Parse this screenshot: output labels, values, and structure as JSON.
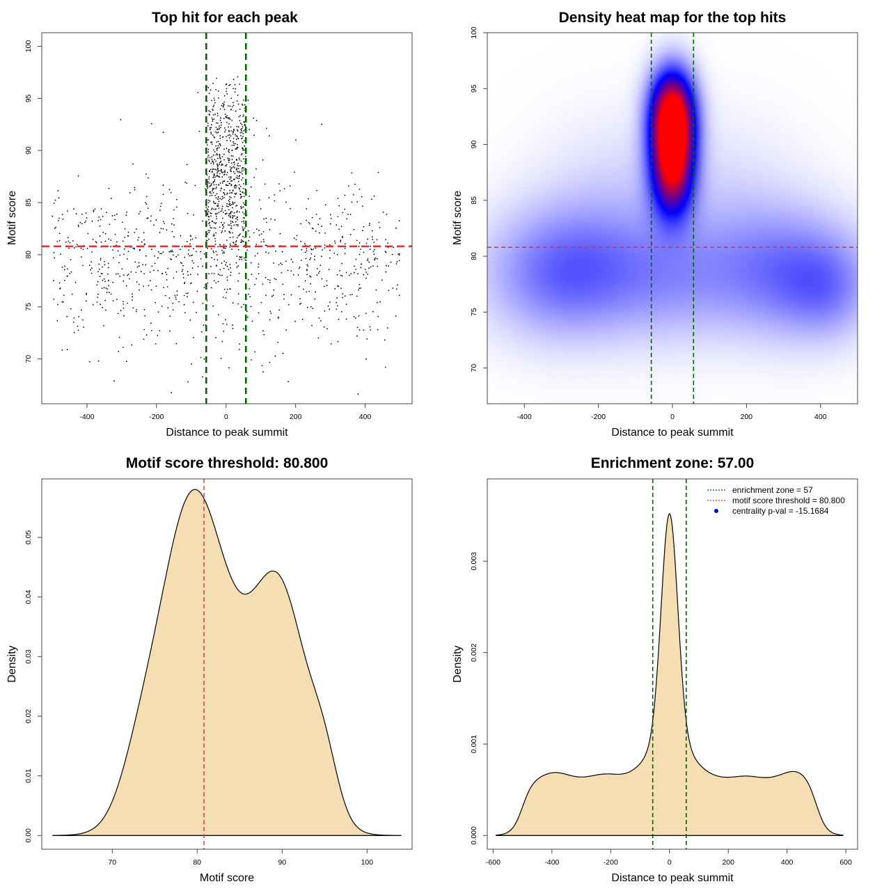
{
  "colors": {
    "threshold_line": "#e03030",
    "zone_line": "#006400",
    "density_fill": "#f5deb3",
    "heat_low": "#ffffff",
    "heat_mid": "#0000ff",
    "heat_high": "#ff0000",
    "legend_dot": "#0000cc"
  },
  "chart_data": [
    {
      "id": "scatter",
      "type": "scatter",
      "title": "Top hit for each peak",
      "xlabel": "Distance to peak summit",
      "ylabel": "Motif score",
      "xlim": [
        -530,
        535
      ],
      "ylim": [
        65.7,
        101.3
      ],
      "xticks": [
        -400,
        -200,
        0,
        200,
        400
      ],
      "yticks": [
        70,
        75,
        80,
        85,
        90,
        95,
        100
      ],
      "vlines": [
        -57,
        57
      ],
      "hline": 80.8,
      "point_count": 1600,
      "background_points": {
        "x_range": [
          -500,
          500
        ],
        "y_mean": 79.5,
        "y_sd": 4.2
      },
      "central_points": {
        "x_range": [
          -57,
          57
        ],
        "y_mean": 88.0,
        "y_sd": 4.5
      }
    },
    {
      "id": "heatmap",
      "type": "heatmap",
      "title": "Density heat map for the top hits",
      "xlabel": "Distance to peak summit",
      "ylabel": "Motif score",
      "xlim": [
        -500,
        500
      ],
      "ylim": [
        66.8,
        100
      ],
      "xticks": [
        -400,
        -200,
        0,
        200,
        400
      ],
      "yticks": [
        70,
        75,
        80,
        85,
        90,
        95,
        100
      ],
      "vlines": [
        -57,
        57
      ],
      "hline": 80.8,
      "hotspots": [
        {
          "x": 0,
          "y": 90.5,
          "sx": 40,
          "sy": 3.2,
          "w": 1.0
        },
        {
          "x": 0,
          "y": 93.5,
          "sx": 42,
          "sy": 2.5,
          "w": 0.45
        },
        {
          "x": 0,
          "y": 86.5,
          "sx": 38,
          "sy": 2.5,
          "w": 0.35
        },
        {
          "x": -280,
          "y": 78.5,
          "sx": 150,
          "sy": 4.0,
          "w": 0.28
        },
        {
          "x": 300,
          "y": 78.5,
          "sx": 150,
          "sy": 4.0,
          "w": 0.24
        },
        {
          "x": 420,
          "y": 77.0,
          "sx": 80,
          "sy": 3.0,
          "w": 0.12
        },
        {
          "x": 0,
          "y": 78.0,
          "sx": 120,
          "sy": 4.0,
          "w": 0.12
        },
        {
          "x": -150,
          "y": 85.5,
          "sx": 150,
          "sy": 5.0,
          "w": 0.06
        },
        {
          "x": 150,
          "y": 85.5,
          "sx": 150,
          "sy": 5.0,
          "w": 0.05
        }
      ]
    },
    {
      "id": "score_density",
      "type": "area",
      "title": "Motif score threshold: 80.800",
      "xlabel": "Motif score",
      "ylabel": "Density",
      "xlim": [
        61.7,
        105.3
      ],
      "ylim": [
        -0.0023,
        0.0598
      ],
      "xticks": [
        70,
        80,
        90,
        100
      ],
      "yticks": [
        0.0,
        0.01,
        0.02,
        0.03,
        0.04,
        0.05
      ],
      "ytick_labels": [
        "0.00",
        "0.01",
        "0.02",
        "0.03",
        "0.04",
        "0.05"
      ],
      "x_range": [
        63,
        104
      ],
      "vline": 80.8,
      "components": [
        {
          "mu": 79.3,
          "sigma": 4.0,
          "w": 0.52
        },
        {
          "mu": 89.8,
          "sigma": 3.3,
          "w": 0.3
        },
        {
          "mu": 95.0,
          "sigma": 1.6,
          "w": 0.03
        },
        {
          "mu": 73.0,
          "sigma": 2.2,
          "w": 0.03
        },
        {
          "mu": 84.5,
          "sigma": 5.0,
          "w": 0.12
        }
      ]
    },
    {
      "id": "distance_density",
      "type": "area",
      "title": "Enrichment zone: 57.00",
      "xlabel": "Distance to peak summit",
      "ylabel": "Density",
      "xlim": [
        -620,
        640
      ],
      "ylim": [
        -0.00015,
        0.0039
      ],
      "xticks": [
        -600,
        -400,
        -200,
        0,
        200,
        400,
        600
      ],
      "yticks": [
        0.0,
        0.001,
        0.002,
        0.003
      ],
      "ytick_labels": [
        "0.000",
        "0.001",
        "0.002",
        "0.003"
      ],
      "x_range": [
        -590,
        590
      ],
      "vlines": [
        -57,
        57
      ],
      "base_level": 0.00062,
      "plateau_range": [
        -500,
        500
      ],
      "components": [
        {
          "mu": 0,
          "sigma": 28,
          "w": 0.00245
        },
        {
          "mu": 0,
          "sigma": 70,
          "w": 0.00045
        },
        {
          "mu": -390,
          "sigma": 45,
          "w": 7e-05
        },
        {
          "mu": -220,
          "sigma": 45,
          "w": 5e-05
        },
        {
          "mu": 430,
          "sigma": 45,
          "w": 9e-05
        },
        {
          "mu": 260,
          "sigma": 40,
          "w": 3e-05
        }
      ],
      "legend": [
        {
          "label": "enrichment zone = 57",
          "kind": "dotted-green"
        },
        {
          "label": "motif score threshold = 80.800",
          "kind": "dotted-red"
        },
        {
          "label": "centrality p-val = -15.1684",
          "kind": "blue-dot"
        }
      ]
    }
  ]
}
